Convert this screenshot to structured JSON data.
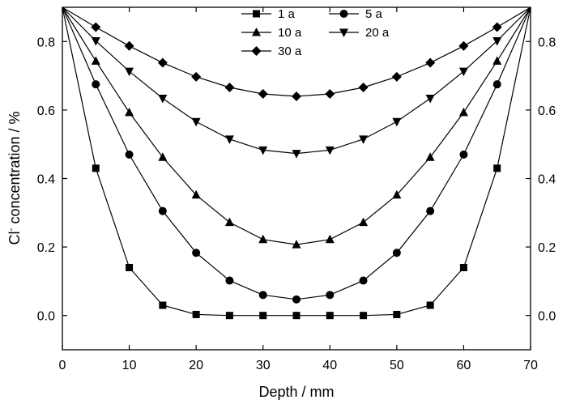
{
  "chart_data": {
    "type": "line",
    "xlabel": "Depth / mm",
    "ylabel_main": "Cl",
    "ylabel_sup": "-",
    "ylabel_rest": " concentration / %",
    "xlim": [
      0,
      70
    ],
    "ylim": [
      -0.1,
      0.9
    ],
    "xticks": [
      0,
      10,
      20,
      30,
      40,
      50,
      60,
      70
    ],
    "yticks": [
      0.0,
      0.2,
      0.4,
      0.6,
      0.8
    ],
    "ytick_labels": [
      "0.0",
      "0.2",
      "0.4",
      "0.6",
      "0.8"
    ],
    "grid": false,
    "legend_position": "top-center",
    "x": [
      0,
      5,
      10,
      15,
      20,
      25,
      30,
      35,
      40,
      45,
      50,
      55,
      60,
      65,
      70
    ],
    "series": [
      {
        "name": "1 a",
        "marker": "square",
        "values": [
          0.9,
          0.43,
          0.14,
          0.03,
          0.003,
          0.0,
          0.0,
          0.0,
          0.0,
          0.0,
          0.003,
          0.03,
          0.14,
          0.43,
          0.9
        ]
      },
      {
        "name": "5 a",
        "marker": "circle",
        "values": [
          0.9,
          0.675,
          0.47,
          0.305,
          0.183,
          0.102,
          0.06,
          0.047,
          0.06,
          0.102,
          0.183,
          0.305,
          0.47,
          0.675,
          0.9
        ]
      },
      {
        "name": "10 a",
        "marker": "triangle-up",
        "values": [
          0.9,
          0.743,
          0.593,
          0.462,
          0.352,
          0.272,
          0.222,
          0.207,
          0.222,
          0.272,
          0.352,
          0.462,
          0.593,
          0.743,
          0.9
        ]
      },
      {
        "name": "20 a",
        "marker": "triangle-down",
        "values": [
          0.9,
          0.802,
          0.713,
          0.634,
          0.566,
          0.515,
          0.483,
          0.473,
          0.483,
          0.515,
          0.566,
          0.634,
          0.713,
          0.802,
          0.9
        ]
      },
      {
        "name": "30 a",
        "marker": "diamond",
        "values": [
          0.9,
          0.842,
          0.787,
          0.738,
          0.697,
          0.666,
          0.647,
          0.64,
          0.647,
          0.666,
          0.697,
          0.738,
          0.787,
          0.842,
          0.9
        ]
      }
    ]
  }
}
